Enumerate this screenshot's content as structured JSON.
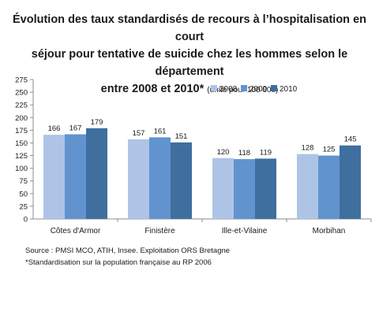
{
  "title": {
    "line1": "Évolution des taux standardisés de recours à l’hospitalisation en court",
    "line2": "séjour pour tentative de suicide chez les hommes selon le département",
    "line3": "entre 2008 et 2010*",
    "unit": "(unité pour 100 000)"
  },
  "chart_data": {
    "type": "bar",
    "categories": [
      "Côtes d'Armor",
      "Finistère",
      "Ille-et-Vilaine",
      "Morbihan"
    ],
    "series": [
      {
        "name": "2008",
        "values": [
          166,
          157,
          120,
          128
        ],
        "color": "#aec4e6"
      },
      {
        "name": "2009",
        "values": [
          167,
          161,
          118,
          125
        ],
        "color": "#6193cf"
      },
      {
        "name": "2010",
        "values": [
          179,
          151,
          119,
          145
        ],
        "color": "#3f6f9e"
      }
    ],
    "ylim": [
      0,
      275
    ],
    "yticks": [
      0,
      25,
      50,
      75,
      100,
      125,
      150,
      175,
      200,
      225,
      250,
      275
    ],
    "grid": false,
    "legend": "top-right",
    "data_labels": true
  },
  "source": {
    "line1": "Source : PMSI MCO, ATIH, Insee. Exploitation ORS Bretagne",
    "line2": "*Standardisation sur la population française au RP 2006"
  }
}
